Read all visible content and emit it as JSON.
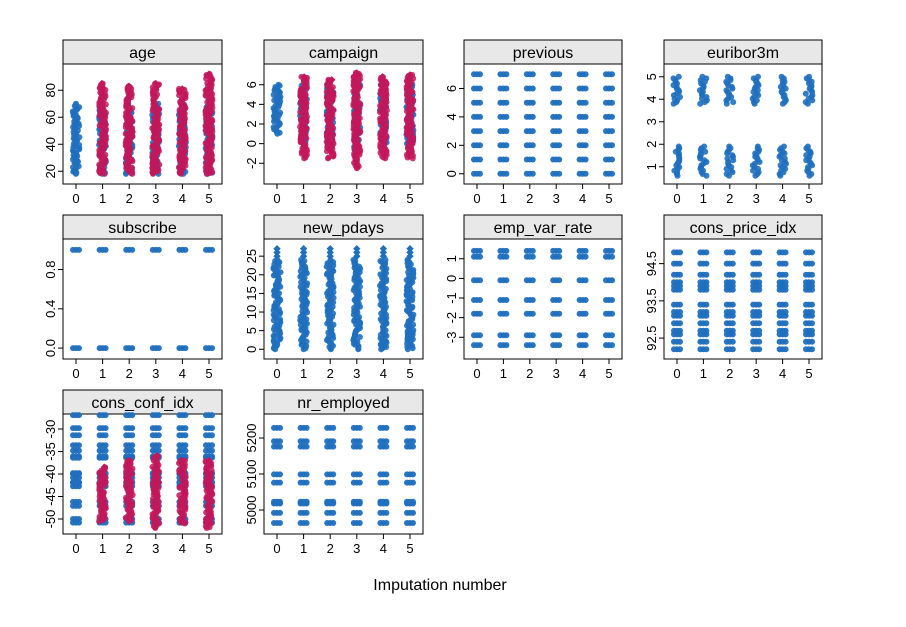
{
  "title": "",
  "xlabel": "Imputation number",
  "colors": {
    "observed": "#1f6fbf",
    "imputed": "#c2185b",
    "strip_bg": "#e8e8e8"
  },
  "chart_data": [
    {
      "type": "scatter",
      "title": "age",
      "x": [
        0,
        1,
        2,
        3,
        4,
        5
      ],
      "xticks": [
        "0",
        "1",
        "2",
        "3",
        "4",
        "5"
      ],
      "ylim": [
        15,
        95
      ],
      "yticks": [
        20,
        40,
        60,
        80
      ],
      "ytick_labels": [
        "20",
        "40",
        "60",
        "80"
      ],
      "observed": [
        [
          18,
          70
        ],
        [
          18,
          70
        ],
        [
          18,
          70
        ],
        [
          18,
          70
        ],
        [
          18,
          70
        ],
        [
          18,
          70
        ]
      ],
      "imputed": [
        null,
        [
          18,
          85
        ],
        [
          18,
          83
        ],
        [
          18,
          85
        ],
        [
          18,
          81
        ],
        [
          18,
          92
        ]
      ]
    },
    {
      "type": "scatter",
      "title": "campaign",
      "x": [
        0,
        1,
        2,
        3,
        4,
        5
      ],
      "xticks": [
        "0",
        "1",
        "2",
        "3",
        "4",
        "5"
      ],
      "ylim": [
        -3.5,
        7.5
      ],
      "yticks": [
        -2,
        0,
        2,
        4,
        6
      ],
      "ytick_labels": [
        "-2",
        "0",
        "2",
        "4",
        "6"
      ],
      "observed": [
        [
          1,
          6
        ],
        [
          0,
          6
        ],
        [
          0,
          6
        ],
        [
          -1,
          6
        ],
        [
          0,
          6
        ],
        [
          0,
          6
        ]
      ],
      "imputed": [
        null,
        [
          -1.5,
          6.8
        ],
        [
          -1.5,
          6.5
        ],
        [
          -2.5,
          7.2
        ],
        [
          -1.5,
          6.8
        ],
        [
          -1.5,
          7
        ]
      ]
    },
    {
      "type": "scatter",
      "title": "previous",
      "x": [
        0,
        1,
        2,
        3,
        4,
        5
      ],
      "xticks": [
        "0",
        "1",
        "2",
        "3",
        "4",
        "5"
      ],
      "ylim": [
        -0.3,
        7.3
      ],
      "yticks": [
        0,
        2,
        4,
        6
      ],
      "ytick_labels": [
        "0",
        "2",
        "4",
        "6"
      ],
      "levels": [
        0,
        1,
        2,
        3,
        4,
        5,
        6,
        7
      ]
    },
    {
      "type": "scatter",
      "title": "euribor3m",
      "x": [
        0,
        1,
        2,
        3,
        4,
        5
      ],
      "xticks": [
        "0",
        "1",
        "2",
        "3",
        "4",
        "5"
      ],
      "ylim": [
        0.5,
        5.3
      ],
      "yticks": [
        1,
        2,
        3,
        4,
        5
      ],
      "ytick_labels": [
        "1",
        "2",
        "3",
        "4",
        "5"
      ],
      "clusters": [
        [
          0.6,
          1.9
        ],
        [
          3.8,
          5.0
        ]
      ]
    },
    {
      "type": "scatter",
      "title": "subscribe",
      "x": [
        0,
        1,
        2,
        3,
        4,
        5
      ],
      "xticks": [
        "0",
        "1",
        "2",
        "3",
        "4",
        "5"
      ],
      "ylim": [
        -0.05,
        1.05
      ],
      "yticks": [
        0,
        0.4,
        0.8
      ],
      "ytick_labels": [
        "0.0",
        "0.4",
        "0.8"
      ],
      "levels": [
        0,
        1
      ]
    },
    {
      "type": "scatter",
      "title": "new_pdays",
      "x": [
        0,
        1,
        2,
        3,
        4,
        5
      ],
      "xticks": [
        "0",
        "1",
        "2",
        "3",
        "4",
        "5"
      ],
      "ylim": [
        -1,
        28
      ],
      "yticks": [
        0,
        5,
        10,
        15,
        20,
        25
      ],
      "ytick_labels": [
        "0",
        "5",
        "10",
        "15",
        "20",
        "25"
      ],
      "observed": [
        [
          0,
          24
        ],
        [
          0,
          24
        ],
        [
          0,
          24
        ],
        [
          0,
          24
        ],
        [
          0,
          24
        ],
        [
          0,
          24
        ]
      ],
      "outliers": [
        25,
        26,
        27
      ]
    },
    {
      "type": "scatter",
      "title": "emp_var_rate",
      "x": [
        0,
        1,
        2,
        3,
        4,
        5
      ],
      "xticks": [
        "0",
        "1",
        "2",
        "3",
        "4",
        "5"
      ],
      "ylim": [
        -3.8,
        1.7
      ],
      "yticks": [
        -3,
        -2,
        -1,
        0,
        1
      ],
      "ytick_labels": [
        "-3",
        "-2",
        "-1",
        "0",
        "1"
      ],
      "levels": [
        -3.4,
        -2.9,
        -1.8,
        -1.1,
        -0.1,
        1.1,
        1.4
      ]
    },
    {
      "type": "scatter",
      "title": "cons_price_idx",
      "x": [
        0,
        1,
        2,
        3,
        4,
        5
      ],
      "xticks": [
        "0",
        "1",
        "2",
        "3",
        "4",
        "5"
      ],
      "ylim": [
        92.1,
        95.0
      ],
      "yticks": [
        92.5,
        93.5,
        94.5
      ],
      "ytick_labels": [
        "92.5",
        "93.5",
        "94.5"
      ],
      "levels": [
        92.2,
        92.4,
        92.6,
        92.7,
        92.9,
        93.1,
        93.2,
        93.4,
        93.8,
        93.9,
        94.0,
        94.2,
        94.5,
        94.8
      ]
    },
    {
      "type": "scatter",
      "title": "cons_conf_idx",
      "x": [
        0,
        1,
        2,
        3,
        4,
        5
      ],
      "xticks": [
        "0",
        "1",
        "2",
        "3",
        "4",
        "5"
      ],
      "ylim": [
        -52,
        -28
      ],
      "yticks": [
        -50,
        -45,
        -40,
        -35,
        -30
      ],
      "ytick_labels": [
        "-50",
        "-45",
        "-40",
        "-35",
        "-30"
      ],
      "levels": [
        -50.8,
        -50,
        -47.1,
        -46.2,
        -42.7,
        -42,
        -41.8,
        -40.8,
        -40,
        -39.8,
        -36.4,
        -36.1,
        -34.8,
        -33.6,
        -31.4,
        -29.8,
        -26.9
      ],
      "imputed": [
        null,
        [
          -50.5,
          -38.5
        ],
        [
          -50.5,
          -37
        ],
        [
          -52,
          -36
        ],
        [
          -51,
          -37
        ],
        [
          -52,
          -37
        ]
      ]
    },
    {
      "type": "scatter",
      "title": "nr_employed",
      "x": [
        0,
        1,
        2,
        3,
        4,
        5
      ],
      "xticks": [
        "0",
        "1",
        "2",
        "3",
        "4",
        "5"
      ],
      "ylim": [
        4950,
        5250
      ],
      "yticks": [
        5000,
        5100,
        5200
      ],
      "ytick_labels": [
        "5000",
        "5100",
        "5200"
      ],
      "levels": [
        4964,
        4992,
        5018,
        5023,
        5076,
        5099,
        5176,
        5191,
        5228
      ]
    }
  ]
}
